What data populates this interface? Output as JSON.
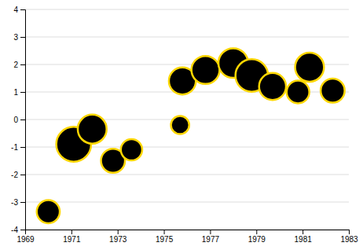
{
  "chart_data": {
    "type": "scatter",
    "x": [
      1970.0,
      1971.1,
      1971.9,
      1972.8,
      1973.6,
      1975.7,
      1975.8,
      1976.8,
      1978.0,
      1978.8,
      1979.7,
      1980.8,
      1981.3,
      1982.3
    ],
    "values": [
      -3.35,
      -0.9,
      -0.35,
      -1.5,
      -1.1,
      -0.2,
      1.4,
      1.8,
      2.05,
      1.6,
      1.2,
      1.0,
      1.9,
      1.05
    ],
    "sizes": [
      350,
      800,
      550,
      380,
      300,
      220,
      480,
      520,
      580,
      700,
      480,
      340,
      550,
      380
    ],
    "color": "#000000",
    "xlim": [
      1969,
      1983
    ],
    "ylim": [
      -4,
      4
    ],
    "xticks": [
      1969,
      1971,
      1973,
      1975,
      1977,
      1979,
      1981,
      1983
    ],
    "yticks": [
      -4,
      -3,
      -2,
      -1,
      0,
      1,
      2,
      3,
      4
    ],
    "grid": true
  }
}
